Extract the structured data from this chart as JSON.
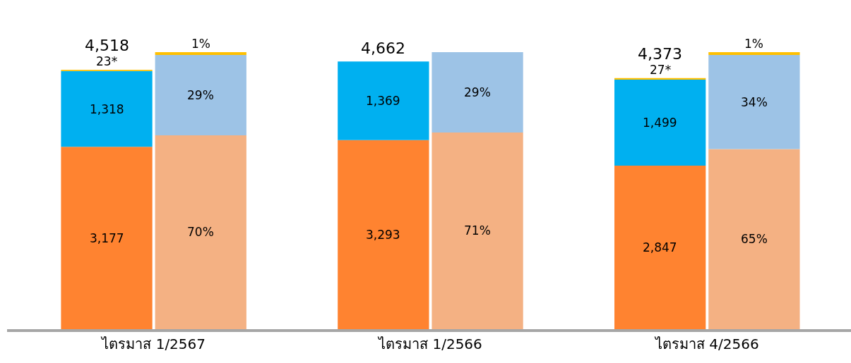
{
  "chart_data": [
    {
      "type": "bar",
      "stacked": true,
      "categories": [
        "ไตรมาส 1/2567",
        "ไตรมาส 1/2566",
        "ไตรมาส 4/2566"
      ],
      "tick_labels": "x",
      "series": [
        {
          "color": "#ff8330",
          "values": [
            3177,
            3293,
            2847
          ],
          "value_labels": [
            "3,177",
            "3,293",
            "2,847"
          ]
        },
        {
          "color": "#00b0f0",
          "values": [
            1318,
            1369,
            1499
          ],
          "value_labels": [
            "1,318",
            "1,369",
            "1,499"
          ]
        },
        {
          "color": "#ffc000",
          "values": [
            23,
            null,
            27
          ],
          "value_labels": [
            "23*",
            null,
            "27*"
          ]
        }
      ],
      "totals": [
        "4,518",
        "4,662",
        "4,373"
      ]
    },
    {
      "type": "bar",
      "stacked": true,
      "categories": [
        null,
        null,
        null
      ],
      "tick_labels": false,
      "series": [
        {
          "color": "#f4b183",
          "values": [
            70,
            71,
            65
          ],
          "value_labels": [
            "70%",
            "71%",
            "65%"
          ]
        },
        {
          "color": "#9dc3e6",
          "values": [
            29,
            29,
            34
          ],
          "value_labels": [
            "29%",
            "29%",
            "34%"
          ]
        },
        {
          "color": "#ffc000",
          "values": [
            1,
            null,
            1
          ],
          "value_labels": [
            "1%",
            null,
            "1%"
          ]
        }
      ]
    }
  ]
}
